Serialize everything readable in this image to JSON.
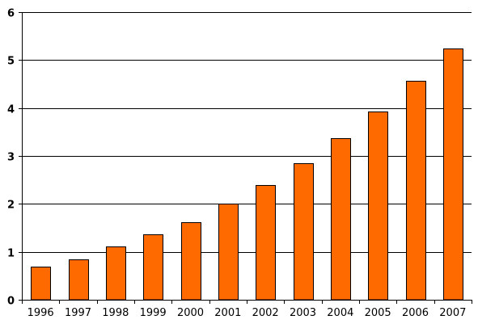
{
  "chart_data": {
    "type": "bar",
    "categories": [
      "1996",
      "1997",
      "1998",
      "1999",
      "2000",
      "2001",
      "2002",
      "2003",
      "2004",
      "2005",
      "2006",
      "2007"
    ],
    "values": [
      0.69,
      0.84,
      1.12,
      1.36,
      1.61,
      2.0,
      2.4,
      2.85,
      3.37,
      3.93,
      4.57,
      5.24
    ],
    "title": "",
    "xlabel": "",
    "ylabel": "",
    "ylim": [
      0,
      6
    ],
    "y_ticks": [
      "0",
      "1",
      "2",
      "3",
      "4",
      "5",
      "6"
    ],
    "grid": "horizontal",
    "legend": "none",
    "colors": {
      "bar_fill": "#FF6A00",
      "bar_stroke": "#000000",
      "grid": "#000000",
      "background": "#FFFFFF"
    }
  }
}
